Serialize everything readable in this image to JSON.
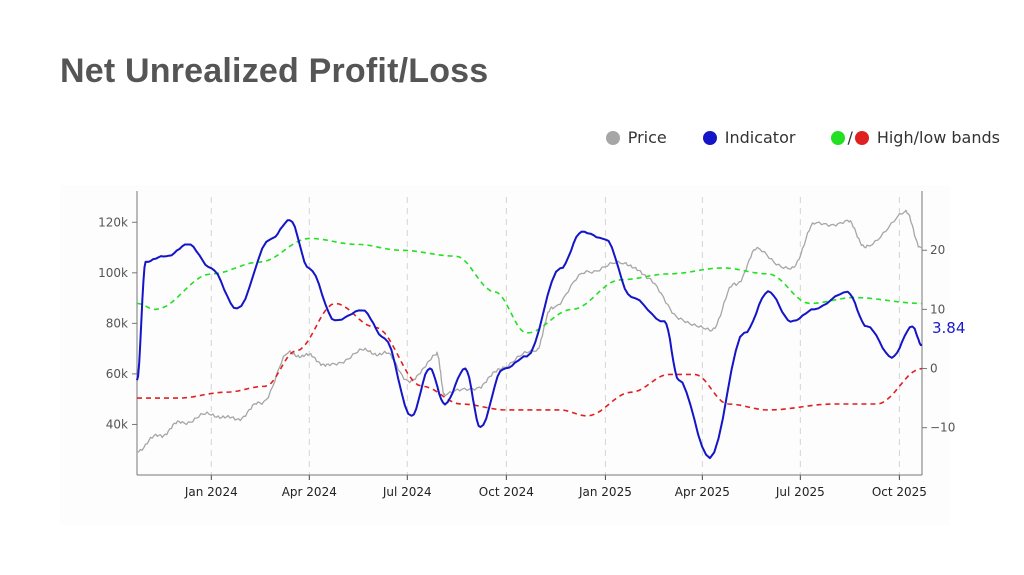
{
  "title": "Net Unrealized Profit/Loss",
  "legend": {
    "price_label": "Price",
    "indicator_label": "Indicator",
    "bands_label": "High/low bands",
    "slash": "/"
  },
  "colors": {
    "price": "#a6a6a6",
    "indicator": "#1414c8",
    "high_band": "#22e022",
    "low_band": "#e02020",
    "text": "#555555"
  },
  "chart_data": {
    "type": "line",
    "x_axis": {
      "type": "time",
      "range": [
        "2023-10-24",
        "2025-10-22"
      ],
      "tick_labels": [
        "Jan 2024",
        "Apr 2024",
        "Jul 2024",
        "Oct 2024",
        "Jan 2025",
        "Apr 2025",
        "Jul 2025",
        "Oct 2025"
      ],
      "tick_dates": [
        "2024-01-01",
        "2024-04-01",
        "2024-07-01",
        "2024-10-01",
        "2025-01-01",
        "2025-04-01",
        "2025-07-01",
        "2025-10-01"
      ]
    },
    "y_left": {
      "tick_labels": [
        "40k",
        "60k",
        "80k",
        "100k",
        "120k"
      ],
      "tick_values": [
        40000,
        60000,
        80000,
        100000,
        120000
      ],
      "range": [
        20000,
        130000
      ]
    },
    "y_right": {
      "tick_labels": [
        "−10",
        "0",
        "10",
        "20"
      ],
      "tick_values": [
        -10,
        0,
        10,
        20
      ],
      "range": [
        -18,
        29
      ]
    },
    "grid": "vertical dashed at x ticks",
    "last_value_label": "3.84",
    "series": [
      {
        "name": "Price",
        "axis": "left",
        "style": "solid",
        "x": [
          "2023-10-24",
          "2023-11-15",
          "2023-12-05",
          "2024-01-01",
          "2024-01-23",
          "2024-02-15",
          "2024-03-14",
          "2024-04-01",
          "2024-04-20",
          "2024-05-20",
          "2024-06-10",
          "2024-07-05",
          "2024-07-28",
          "2024-08-05",
          "2024-09-06",
          "2024-09-28",
          "2024-10-29",
          "2024-11-13",
          "2024-12-17",
          "2025-01-20",
          "2025-02-10",
          "2025-03-10",
          "2025-04-08",
          "2025-05-01",
          "2025-05-22",
          "2025-06-22",
          "2025-07-14",
          "2025-08-14",
          "2025-09-01",
          "2025-10-06",
          "2025-10-22"
        ],
        "y": [
          30000,
          36000,
          41000,
          44000,
          42000,
          48000,
          68000,
          67000,
          63000,
          69000,
          68000,
          57000,
          68000,
          52000,
          55000,
          63000,
          70000,
          87000,
          101000,
          104000,
          98000,
          82000,
          77000,
          95000,
          109000,
          101000,
          119000,
          120000,
          110000,
          124000,
          110000
        ]
      },
      {
        "name": "Indicator",
        "axis": "right",
        "style": "solid",
        "x": [
          "2023-10-24",
          "2023-11-01",
          "2023-11-20",
          "2023-12-10",
          "2024-01-01",
          "2024-01-25",
          "2024-02-25",
          "2024-03-14",
          "2024-04-01",
          "2024-04-25",
          "2024-05-20",
          "2024-06-10",
          "2024-07-05",
          "2024-07-22",
          "2024-08-05",
          "2024-08-24",
          "2024-09-07",
          "2024-09-28",
          "2024-10-20",
          "2024-11-20",
          "2024-12-10",
          "2025-01-01",
          "2025-01-25",
          "2025-02-25",
          "2025-03-10",
          "2025-04-08",
          "2025-05-10",
          "2025-06-01",
          "2025-06-22",
          "2025-07-14",
          "2025-08-14",
          "2025-09-01",
          "2025-09-24",
          "2025-10-13",
          "2025-10-22"
        ],
        "y": [
          -2,
          18,
          19,
          21,
          17,
          10,
          22,
          25,
          17,
          8,
          10,
          5,
          -8,
          0,
          -6,
          0,
          -10,
          0,
          2,
          17,
          23,
          22,
          12,
          8,
          -2,
          -15,
          6,
          13,
          8,
          10,
          13,
          7,
          2,
          7,
          4
        ]
      },
      {
        "name": "High band",
        "axis": "right",
        "style": "dashed",
        "x": [
          "2023-10-24",
          "2023-11-10",
          "2024-01-01",
          "2024-02-15",
          "2024-04-01",
          "2024-05-15",
          "2024-06-25",
          "2024-08-15",
          "2024-09-20",
          "2024-10-20",
          "2024-12-01",
          "2025-01-15",
          "2025-03-01",
          "2025-04-20",
          "2025-06-01",
          "2025-07-10",
          "2025-08-20",
          "2025-10-22"
        ],
        "y": [
          11,
          10,
          16,
          18,
          22,
          21,
          20,
          19,
          13,
          6,
          10,
          15,
          16,
          17,
          16,
          11,
          12,
          11
        ]
      },
      {
        "name": "Low band",
        "axis": "right",
        "style": "dashed",
        "x": [
          "2023-10-24",
          "2023-12-01",
          "2024-01-15",
          "2024-02-20",
          "2024-03-20",
          "2024-04-25",
          "2024-06-01",
          "2024-07-15",
          "2024-08-20",
          "2024-10-01",
          "2024-11-20",
          "2024-12-15",
          "2025-01-25",
          "2025-03-01",
          "2025-03-25",
          "2025-04-25",
          "2025-06-01",
          "2025-08-01",
          "2025-09-10",
          "2025-10-22"
        ],
        "y": [
          -5,
          -5,
          -4,
          -3,
          3,
          11,
          7,
          -3,
          -6,
          -7,
          -7,
          -8,
          -4,
          -1,
          -1,
          -6,
          -7,
          -6,
          -6,
          0
        ]
      }
    ]
  }
}
